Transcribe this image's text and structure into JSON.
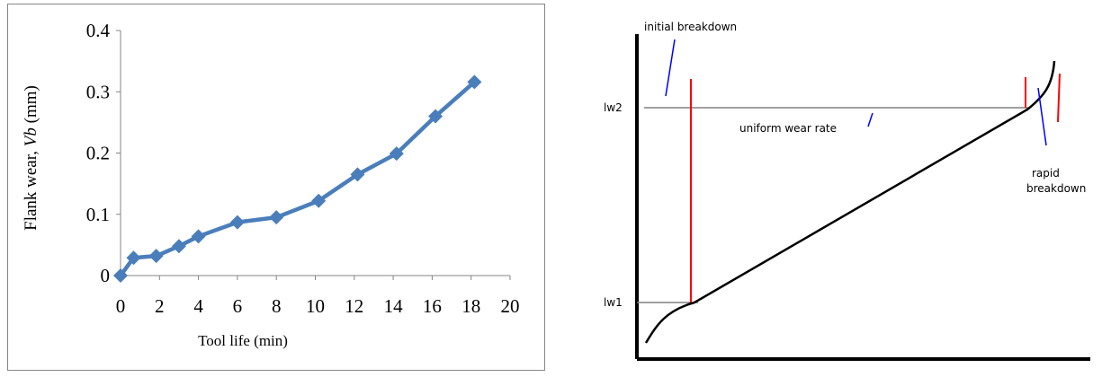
{
  "chart_data": [
    {
      "type": "line",
      "xlabel": "Tool life (min)",
      "ylabel_main": "Flank wear, ",
      "ylabel_italic": "Vb",
      "ylabel_unit": " (mm)",
      "xlim": [
        0,
        20
      ],
      "ylim": [
        0,
        0.4
      ],
      "x_ticks": [
        "0",
        "2",
        "4",
        "6",
        "8",
        "10",
        "12",
        "14",
        "16",
        "18",
        "20"
      ],
      "y_ticks": [
        "0",
        "0.1",
        "0.2",
        "0.3",
        "0.4"
      ],
      "grid": false,
      "series": [
        {
          "color": "#4a7ebb",
          "marker": "diamond",
          "x": [
            0,
            0.67,
            1.83,
            3.0,
            4.0,
            6.0,
            8.0,
            10.17,
            12.17,
            14.17,
            16.17,
            18.17
          ],
          "values": [
            0.0,
            0.029,
            0.032,
            0.048,
            0.064,
            0.087,
            0.095,
            0.122,
            0.165,
            0.199,
            0.26,
            0.316
          ]
        }
      ]
    },
    {
      "type": "line",
      "labels": {
        "initial": "initial breakdown",
        "uniform": "uniform wear rate",
        "rapid_line1": "rapid",
        "rapid_line2": "breakdown",
        "lw2": "lw2",
        "lw1": "lw1"
      },
      "curve_color": "#000000",
      "level_color": "#808080",
      "marker_color": "#ff0000",
      "pointer_color": "#0000ff"
    }
  ]
}
